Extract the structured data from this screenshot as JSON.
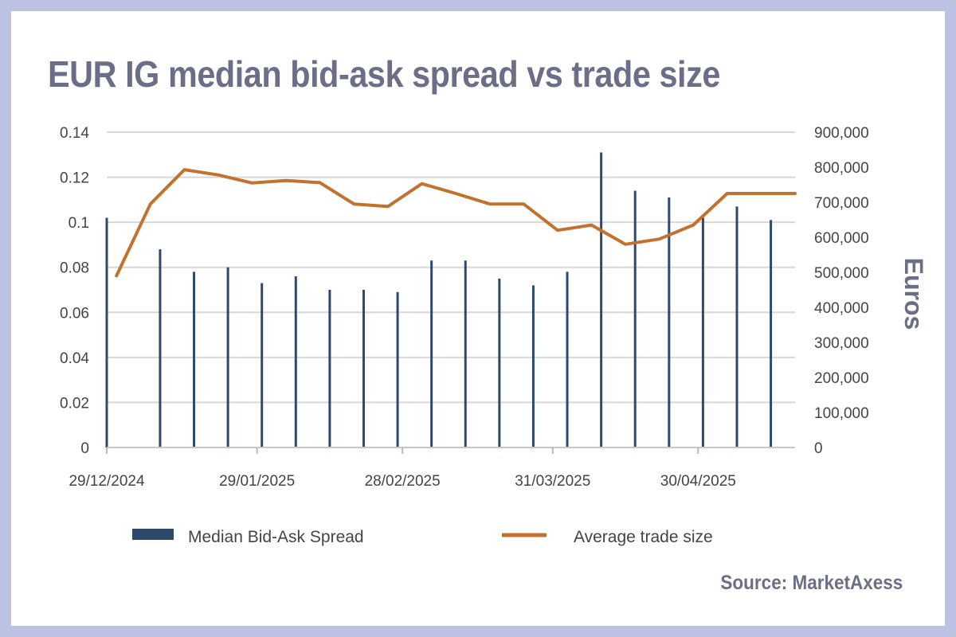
{
  "chart_data": {
    "type": "bar+line",
    "title": "EUR IG median bid-ask spread vs trade size",
    "x_tick_labels": [
      "29/12/2024",
      "29/01/2025",
      "28/02/2025",
      "31/03/2025",
      "30/04/2025"
    ],
    "x_start": "29/12/2024",
    "x_end": "20/05/2025",
    "y_left": {
      "min": 0,
      "max": 0.14,
      "ticks": [
        "0",
        "0.02",
        "0.04",
        "0.06",
        "0.08",
        "0.1",
        "0.12",
        "0.14"
      ]
    },
    "y_right": {
      "min": 0,
      "max": 900000,
      "label": "Euros",
      "ticks": [
        "0",
        "100,000",
        "200,000",
        "300,000",
        "400,000",
        "500,000",
        "600,000",
        "700,000",
        "800,000",
        "900,000"
      ]
    },
    "grid": true,
    "series": [
      {
        "name": "Median Bid-Ask Spread",
        "kind": "bar",
        "axis": "left",
        "color": "#2e4a6b",
        "points": [
          {
            "x": "29/12/2024",
            "y": 0.102
          },
          {
            "x": "09/01/2025",
            "y": 0.088
          },
          {
            "x": "16/01/2025",
            "y": 0.078
          },
          {
            "x": "23/01/2025",
            "y": 0.08
          },
          {
            "x": "30/01/2025",
            "y": 0.073
          },
          {
            "x": "06/02/2025",
            "y": 0.076
          },
          {
            "x": "13/02/2025",
            "y": 0.07
          },
          {
            "x": "20/02/2025",
            "y": 0.07
          },
          {
            "x": "27/02/2025",
            "y": 0.069
          },
          {
            "x": "06/03/2025",
            "y": 0.083
          },
          {
            "x": "13/03/2025",
            "y": 0.083
          },
          {
            "x": "20/03/2025",
            "y": 0.075
          },
          {
            "x": "27/03/2025",
            "y": 0.072
          },
          {
            "x": "03/04/2025",
            "y": 0.078
          },
          {
            "x": "10/04/2025",
            "y": 0.131
          },
          {
            "x": "17/04/2025",
            "y": 0.114
          },
          {
            "x": "24/04/2025",
            "y": 0.111
          },
          {
            "x": "01/05/2025",
            "y": 0.102
          },
          {
            "x": "08/05/2025",
            "y": 0.107
          },
          {
            "x": "15/05/2025",
            "y": 0.101
          }
        ]
      },
      {
        "name": "Average trade size",
        "kind": "line",
        "axis": "right",
        "color": "#c2722d",
        "points": [
          {
            "x": "31/12/2024",
            "y": 490000
          },
          {
            "x": "07/01/2025",
            "y": 695000
          },
          {
            "x": "14/01/2025",
            "y": 793000
          },
          {
            "x": "21/01/2025",
            "y": 778000
          },
          {
            "x": "28/01/2025",
            "y": 755000
          },
          {
            "x": "04/02/2025",
            "y": 762000
          },
          {
            "x": "11/02/2025",
            "y": 756000
          },
          {
            "x": "18/02/2025",
            "y": 695000
          },
          {
            "x": "25/02/2025",
            "y": 688000
          },
          {
            "x": "04/03/2025",
            "y": 753000
          },
          {
            "x": "11/03/2025",
            "y": 725000
          },
          {
            "x": "18/03/2025",
            "y": 695000
          },
          {
            "x": "25/03/2025",
            "y": 695000
          },
          {
            "x": "01/04/2025",
            "y": 620000
          },
          {
            "x": "08/04/2025",
            "y": 635000
          },
          {
            "x": "15/04/2025",
            "y": 580000
          },
          {
            "x": "22/04/2025",
            "y": 595000
          },
          {
            "x": "29/04/2025",
            "y": 635000
          },
          {
            "x": "06/05/2025",
            "y": 725000
          },
          {
            "x": "13/05/2025",
            "y": 725000
          },
          {
            "x": "20/05/2025",
            "y": 725000
          }
        ]
      }
    ],
    "legend_position": "bottom",
    "source": "Source: MarketAxess"
  },
  "colors": {
    "frame": "#bcc2e3",
    "title": "#6b6e87",
    "bar": "#2e4a6b",
    "line": "#c2722d",
    "grid": "#d7d7d7"
  }
}
